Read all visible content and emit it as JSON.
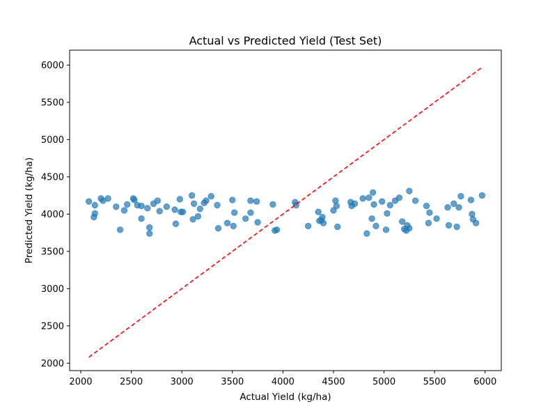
{
  "chart_data": {
    "type": "scatter",
    "title": "Actual vs Predicted Yield (Test Set)",
    "xlabel": "Actual Yield (kg/ha)",
    "ylabel": "Predicted Yield (kg/ha)",
    "xlim": [
      1890,
      6160
    ],
    "ylim": [
      1900,
      6200
    ],
    "xticks": [
      "2000",
      "2500",
      "3000",
      "3500",
      "4000",
      "4500",
      "5000",
      "5500",
      "6000"
    ],
    "yticks": [
      "2000",
      "2500",
      "3000",
      "3500",
      "4000",
      "4500",
      "5000",
      "5500",
      "6000"
    ],
    "grid": false,
    "point_color": "#1f77b4",
    "line_color": "#ff0000",
    "reference_line": {
      "style": "dashed",
      "x": [
        2080,
        5970
      ],
      "y": [
        2080,
        5970
      ]
    },
    "points": [
      [
        2080,
        4170
      ],
      [
        2130,
        3960
      ],
      [
        2140,
        4010
      ],
      [
        2140,
        4120
      ],
      [
        2200,
        4210
      ],
      [
        2220,
        4180
      ],
      [
        2270,
        4210
      ],
      [
        2350,
        4100
      ],
      [
        2390,
        3790
      ],
      [
        2430,
        4050
      ],
      [
        2460,
        4130
      ],
      [
        2520,
        4210
      ],
      [
        2530,
        4190
      ],
      [
        2560,
        4120
      ],
      [
        2600,
        4110
      ],
      [
        2600,
        3940
      ],
      [
        2660,
        4080
      ],
      [
        2680,
        3740
      ],
      [
        2680,
        3820
      ],
      [
        2720,
        4140
      ],
      [
        2760,
        4180
      ],
      [
        2780,
        4040
      ],
      [
        2850,
        4100
      ],
      [
        2930,
        4060
      ],
      [
        2940,
        3870
      ],
      [
        2980,
        4200
      ],
      [
        2990,
        4030
      ],
      [
        3010,
        4030
      ],
      [
        3100,
        4250
      ],
      [
        3110,
        3930
      ],
      [
        3120,
        4140
      ],
      [
        3160,
        3970
      ],
      [
        3180,
        4070
      ],
      [
        3220,
        4150
      ],
      [
        3240,
        4180
      ],
      [
        3290,
        4240
      ],
      [
        3350,
        4120
      ],
      [
        3360,
        3810
      ],
      [
        3450,
        3880
      ],
      [
        3500,
        4190
      ],
      [
        3510,
        3840
      ],
      [
        3520,
        4020
      ],
      [
        3630,
        3940
      ],
      [
        3680,
        4180
      ],
      [
        3680,
        4020
      ],
      [
        3740,
        4170
      ],
      [
        3750,
        3890
      ],
      [
        3900,
        4130
      ],
      [
        3920,
        3780
      ],
      [
        3940,
        3790
      ],
      [
        4120,
        4160
      ],
      [
        4130,
        4120
      ],
      [
        4250,
        3840
      ],
      [
        4350,
        4030
      ],
      [
        4360,
        3910
      ],
      [
        4380,
        3920
      ],
      [
        4390,
        3960
      ],
      [
        4400,
        3880
      ],
      [
        4500,
        4050
      ],
      [
        4520,
        4180
      ],
      [
        4530,
        4110
      ],
      [
        4540,
        3830
      ],
      [
        4670,
        4160
      ],
      [
        4680,
        4110
      ],
      [
        4710,
        4140
      ],
      [
        4790,
        4210
      ],
      [
        4830,
        3740
      ],
      [
        4850,
        4220
      ],
      [
        4880,
        3940
      ],
      [
        4890,
        4290
      ],
      [
        4900,
        4130
      ],
      [
        4920,
        3840
      ],
      [
        4980,
        4170
      ],
      [
        5020,
        3790
      ],
      [
        5030,
        4010
      ],
      [
        5060,
        4120
      ],
      [
        5110,
        4180
      ],
      [
        5150,
        4220
      ],
      [
        5180,
        3900
      ],
      [
        5200,
        3800
      ],
      [
        5220,
        3780
      ],
      [
        5230,
        3850
      ],
      [
        5250,
        3810
      ],
      [
        5250,
        4310
      ],
      [
        5310,
        4180
      ],
      [
        5420,
        4110
      ],
      [
        5440,
        3880
      ],
      [
        5450,
        4020
      ],
      [
        5520,
        3940
      ],
      [
        5630,
        4090
      ],
      [
        5640,
        3850
      ],
      [
        5690,
        4140
      ],
      [
        5720,
        3830
      ],
      [
        5740,
        4090
      ],
      [
        5760,
        4240
      ],
      [
        5860,
        4190
      ],
      [
        5870,
        4000
      ],
      [
        5880,
        3930
      ],
      [
        5910,
        3880
      ],
      [
        5970,
        4250
      ]
    ]
  }
}
